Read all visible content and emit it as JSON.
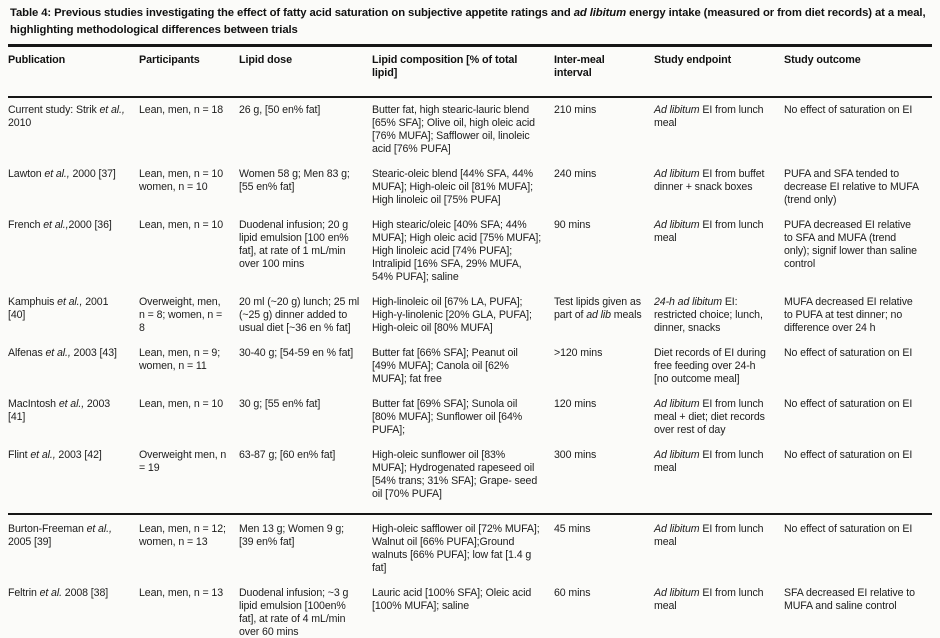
{
  "title_segments": [
    {
      "t": "Table 4: Previous studies investigating the effect of fatty acid saturation on subjective appetite ratings and ",
      "i": false
    },
    {
      "t": "ad libitum",
      "i": true
    },
    {
      "t": " energy intake (measured or from diet records) at a meal, highlighting methodological differences between trials",
      "i": false
    }
  ],
  "table": {
    "columns": [
      {
        "key": "publication",
        "label": "Publication"
      },
      {
        "key": "participants",
        "label": "Participants"
      },
      {
        "key": "lipid-dose",
        "label": "Lipid dose"
      },
      {
        "key": "lipid-composition",
        "label": "Lipid composition [% of total lipid]"
      },
      {
        "key": "inter-meal-interval",
        "label": "Inter-meal interval"
      },
      {
        "key": "study-endpoint",
        "label": "Study endpoint"
      },
      {
        "key": "study-outcome",
        "label": "Study outcome"
      }
    ],
    "rows": [
      {
        "cells": [
          [
            {
              "t": "Current study: Strik ",
              "i": false
            },
            {
              "t": "et al.,",
              "i": true
            },
            {
              "t": " 2010",
              "i": false
            }
          ],
          "Lean, men, n = 18",
          "26 g, [50 en% fat]",
          "Butter fat, high stearic-lauric blend [65% SFA]; Olive oil, high oleic acid [76% MUFA]; Safflower oil, linoleic acid [76% PUFA]",
          "210 mins",
          [
            {
              "t": "Ad libitum",
              "i": true
            },
            {
              "t": " EI from lunch meal",
              "i": false
            }
          ],
          "No effect of saturation on EI"
        ]
      },
      {
        "cells": [
          [
            {
              "t": "Lawton ",
              "i": false
            },
            {
              "t": "et al.,",
              "i": true
            },
            {
              "t": " 2000 [37]",
              "i": false
            }
          ],
          "Lean, men, n = 10 women, n = 10",
          "Women 58 g; Men 83 g; [55 en% fat]",
          "Stearic-oleic blend [44% SFA, 44% MUFA]; High-oleic oil [81% MUFA]; High linoleic oil [75% PUFA]",
          "240 mins",
          [
            {
              "t": "Ad libitum",
              "i": true
            },
            {
              "t": " EI from buffet dinner + snack boxes",
              "i": false
            }
          ],
          "PUFA and SFA tended to decrease EI relative to MUFA (trend only)"
        ]
      },
      {
        "cells": [
          [
            {
              "t": "French ",
              "i": false
            },
            {
              "t": "et al.,",
              "i": true
            },
            {
              "t": "2000 [36]",
              "i": false
            }
          ],
          "Lean, men, n = 10",
          "Duodenal infusion; 20 g lipid emulsion [100 en% fat], at rate of 1 mL/min over 100 mins",
          "High stearic/oleic [40% SFA; 44% MUFA]; High oleic acid [75% MUFA]; High linoleic acid [74% PUFA]; Intralipid [16% SFA, 29% MUFA, 54% PUFA]; saline",
          "90 mins",
          [
            {
              "t": "Ad libitum",
              "i": true
            },
            {
              "t": " EI from lunch meal",
              "i": false
            }
          ],
          "PUFA decreased EI relative to SFA and MUFA (trend only); signif lower than saline control"
        ]
      },
      {
        "cells": [
          [
            {
              "t": "Kamphuis ",
              "i": false
            },
            {
              "t": "et al.,",
              "i": true
            },
            {
              "t": " 2001 [40]",
              "i": false
            }
          ],
          "Overweight, men, n = 8; women, n = 8",
          "20 ml (~20 g) lunch; 25 ml (~25 g) dinner added to usual diet [~36 en % fat]",
          "High-linoleic oil [67% LA, PUFA]; High-γ-linolenic [20% GLA, PUFA]; High-oleic oil [80% MUFA]",
          [
            {
              "t": "Test lipids given as part of ",
              "i": false
            },
            {
              "t": "ad lib",
              "i": true
            },
            {
              "t": " meals",
              "i": false
            }
          ],
          [
            {
              "t": "24-h ad libitum",
              "i": true
            },
            {
              "t": " EI: restricted choice; lunch, dinner, snacks",
              "i": false
            }
          ],
          "MUFA decreased EI relative to PUFA at test dinner; no difference over 24 h"
        ]
      },
      {
        "cells": [
          [
            {
              "t": "Alfenas ",
              "i": false
            },
            {
              "t": "et al.,",
              "i": true
            },
            {
              "t": " 2003 [43]",
              "i": false
            }
          ],
          "Lean, men, n = 9; women, n = 11",
          "30-40 g; [54-59 en % fat]",
          "Butter fat [66% SFA]; Peanut oil [49% MUFA]; Canola oil [62% MUFA]; fat free",
          ">120 mins",
          "Diet records of EI during free feeding over 24-h [no outcome meal]",
          "No effect of saturation on EI"
        ]
      },
      {
        "cells": [
          [
            {
              "t": "MacIntosh ",
              "i": false
            },
            {
              "t": "et al.,",
              "i": true
            },
            {
              "t": " 2003 [41]",
              "i": false
            }
          ],
          "Lean, men, n = 10",
          "30 g; [55 en% fat]",
          "Butter fat [69% SFA]; Sunola oil [80% MUFA]; Sunflower oil [64% PUFA];",
          "120 mins",
          [
            {
              "t": "Ad libitum",
              "i": true
            },
            {
              "t": " EI from lunch meal + diet; diet records over rest of day",
              "i": false
            }
          ],
          "No effect of saturation on EI"
        ]
      },
      {
        "pre_section": true,
        "cells": [
          [
            {
              "t": "Flint ",
              "i": false
            },
            {
              "t": "et al.,",
              "i": true
            },
            {
              "t": " 2003 [42]",
              "i": false
            }
          ],
          "Overweight men, n = 19",
          "63-87 g; [60 en% fat]",
          "High-oleic sunflower oil [83% MUFA]; Hydrogenated rapeseed oil [54% trans; 31% SFA]; Grape- seed oil [70% PUFA]",
          "300 mins",
          [
            {
              "t": "Ad libitum",
              "i": true
            },
            {
              "t": " EI from lunch meal",
              "i": false
            }
          ],
          "No effect of saturation on EI"
        ]
      },
      {
        "section_start": true,
        "cells": [
          [
            {
              "t": "Burton-Freeman ",
              "i": false
            },
            {
              "t": "et al.,",
              "i": true
            },
            {
              "t": " 2005 [39]",
              "i": false
            }
          ],
          "Lean, men, n = 12; women, n = 13",
          "Men 13 g; Women 9 g; [39 en% fat]",
          "High-oleic safflower oil [72% MUFA]; Walnut oil [66% PUFA];Ground walnuts [66% PUFA]; low fat [1.4 g fat]",
          "45 mins",
          [
            {
              "t": "Ad libitum",
              "i": true
            },
            {
              "t": " EI from lunch meal",
              "i": false
            }
          ],
          "No effect of saturation on EI"
        ]
      },
      {
        "cells": [
          [
            {
              "t": "Feltrin ",
              "i": false
            },
            {
              "t": "et al.",
              "i": true
            },
            {
              "t": " 2008 [38]",
              "i": false
            }
          ],
          "Lean, men, n = 13",
          "Duodenal infusion; ~3 g lipid emulsion [100en% fat], at rate of 4 mL/min over 60 mins",
          "Lauric acid [100% SFA]; Oleic acid [100% MUFA]; saline",
          "60 mins",
          [
            {
              "t": "Ad libitum",
              "i": true
            },
            {
              "t": " EI from lunch meal",
              "i": false
            }
          ],
          "SFA decreased EI relative to MUFA and saline control"
        ]
      }
    ]
  }
}
